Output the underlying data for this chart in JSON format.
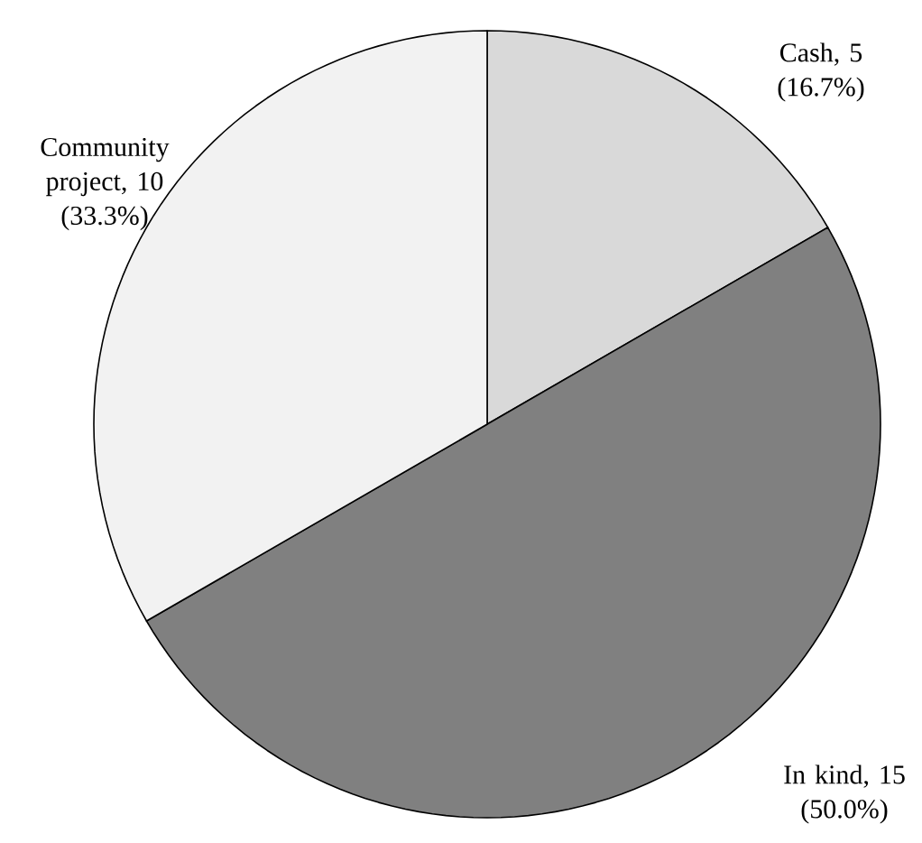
{
  "chart_data": {
    "type": "pie",
    "categories": [
      "Cash",
      "In kind",
      "Community project"
    ],
    "values": [
      5,
      15,
      10
    ],
    "value_labels": [
      ", 5 (16.7%)",
      ", 15 (50.0%)",
      ", 10 (33.3%)"
    ],
    "colors": [
      "#d9d9d9",
      "#808080",
      "#f2f2f2"
    ]
  }
}
